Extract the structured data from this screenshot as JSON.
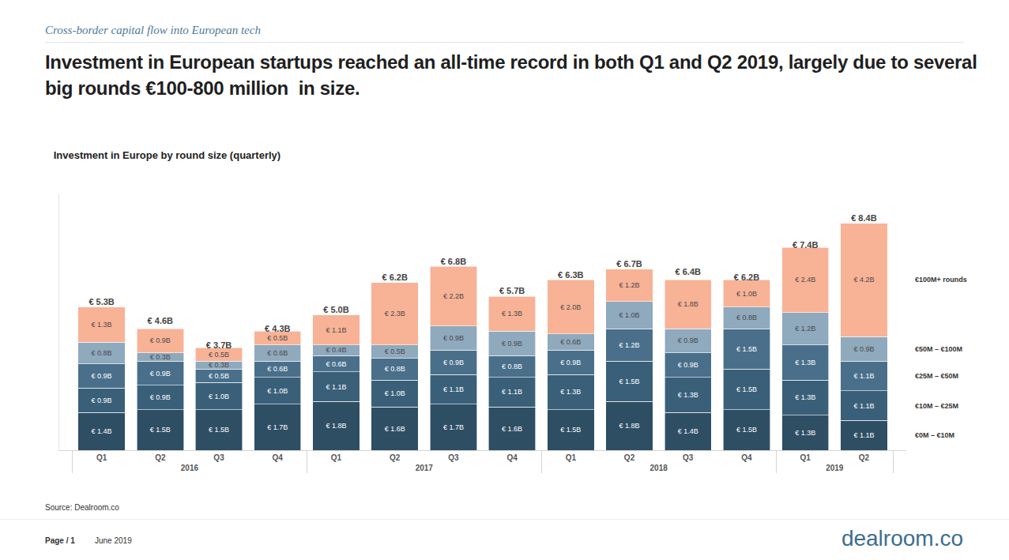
{
  "page": {
    "header": "Cross-border capital flow into European tech",
    "headline": "Investment in European startups reached an all-time record in both Q1 and Q2 2019, largely due to several big rounds €100-800 million  in size.",
    "source": "Source: Dealroom.co",
    "page_label": "Page / 1",
    "date": "June 2019",
    "logo": "dealroom.co"
  },
  "chart_data": {
    "type": "bar",
    "title": "Investment in Europe by round size (quarterly)",
    "stacked": true,
    "data_labels": true,
    "tick_labels": "x",
    "categories": [
      "Q1",
      "Q2",
      "Q3",
      "Q4",
      "Q1",
      "Q2",
      "Q3",
      "Q4",
      "Q1",
      "Q2",
      "Q3",
      "Q4",
      "Q1",
      "Q2"
    ],
    "category_groups": [
      "2016",
      "2016",
      "2016",
      "2016",
      "2017",
      "2017",
      "2017",
      "2017",
      "2018",
      "2018",
      "2018",
      "2018",
      "2019",
      "2019"
    ],
    "ylim": [
      0,
      9.5
    ],
    "yticks": [],
    "series": [
      {
        "name": "€0M – €10M",
        "color": "#2e4e64",
        "values": [
          1.4,
          1.5,
          1.5,
          1.7,
          1.8,
          1.6,
          1.7,
          1.6,
          1.5,
          1.8,
          1.4,
          1.5,
          1.3,
          1.1
        ],
        "value_labels": [
          "€ 1.4B",
          "€ 1.5B",
          "€ 1.5B",
          "€ 1.7B",
          "€ 1.8B",
          "€ 1.6B",
          "€ 1.7B",
          "€ 1.6B",
          "€ 1.5B",
          "€ 1.8B",
          "€ 1.4B",
          "€ 1.5B",
          "€ 1.3B",
          "€ 1.1B"
        ]
      },
      {
        "name": "€10M – €25M",
        "color": "#3a6079",
        "values": [
          0.9,
          0.9,
          1.0,
          1.0,
          1.1,
          1.0,
          1.1,
          1.1,
          1.3,
          1.5,
          1.3,
          1.5,
          1.3,
          1.1
        ],
        "value_labels": [
          "€ 0.9B",
          "€ 0.9B",
          "€ 1.0B",
          "€ 1.0B",
          "€ 1.1B",
          "€ 1.0B",
          "€ 1.1B",
          "€ 1.1B",
          "€ 1.3B",
          "€ 1.5B",
          "€ 1.3B",
          "€ 1.5B",
          "€ 1.3B",
          "€ 1.1B"
        ]
      },
      {
        "name": "€25M – €50M",
        "color": "#496f8b",
        "values": [
          0.9,
          0.9,
          0.5,
          0.6,
          0.6,
          0.8,
          0.9,
          0.8,
          0.9,
          1.2,
          0.9,
          1.5,
          1.3,
          1.1
        ],
        "value_labels": [
          "€ 0.9B",
          "€ 0.9B",
          "€ 0.5B",
          "€ 0.6B",
          "€ 0.6B",
          "€ 0.8B",
          "€ 0.9B",
          "€ 0.8B",
          "€ 0.9B",
          "€ 1.2B",
          "€ 0.9B",
          "€ 1.5B",
          "€ 1.3B",
          "€ 1.1B"
        ]
      },
      {
        "name": "€50M – €100M",
        "color": "#8fa9bd",
        "values": [
          0.8,
          0.3,
          0.3,
          0.6,
          0.4,
          0.5,
          0.9,
          0.9,
          0.6,
          1.0,
          0.9,
          0.8,
          1.2,
          0.9
        ],
        "value_labels": [
          "€ 0.8B",
          "€ 0.3B",
          "€ 0.3B",
          "€ 0.6B",
          "€ 0.4B",
          "€ 0.5B",
          "€ 0.9B",
          "€ 0.9B",
          "€ 0.6B",
          "€ 1.0B",
          "€ 0.9B",
          "€ 0.8B",
          "€ 1.2B",
          "€ 0.9B"
        ]
      },
      {
        "name": "€100M+ rounds",
        "color": "#f8b296",
        "values": [
          1.3,
          0.9,
          0.5,
          0.5,
          1.1,
          2.3,
          2.2,
          1.3,
          2.0,
          1.2,
          1.8,
          1.0,
          2.4,
          4.2
        ],
        "value_labels": [
          "€ 1.3B",
          "€ 0.9B",
          "€ 0.5B",
          "€ 0.5B",
          "€ 1.1B",
          "€ 2.3B",
          "€ 2.2B",
          "€ 1.3B",
          "€ 2.0B",
          "€ 1.2B",
          "€ 1.8B",
          "€ 1.0B",
          "€ 2.4B",
          "€ 4.2B"
        ]
      }
    ],
    "totals": [
      5.3,
      4.6,
      3.7,
      4.3,
      5.0,
      6.2,
      6.8,
      5.7,
      6.3,
      6.7,
      6.4,
      6.2,
      7.4,
      8.4
    ],
    "total_labels": [
      "€ 5.3B",
      "€ 4.6B",
      "€ 3.7B",
      "€ 4.3B",
      "€ 5.0B",
      "€ 6.2B",
      "€ 6.8B",
      "€ 5.7B",
      "€ 6.3B",
      "€ 6.7B",
      "€ 6.4B",
      "€ 6.2B",
      "€ 7.4B",
      "€ 8.4B"
    ]
  }
}
